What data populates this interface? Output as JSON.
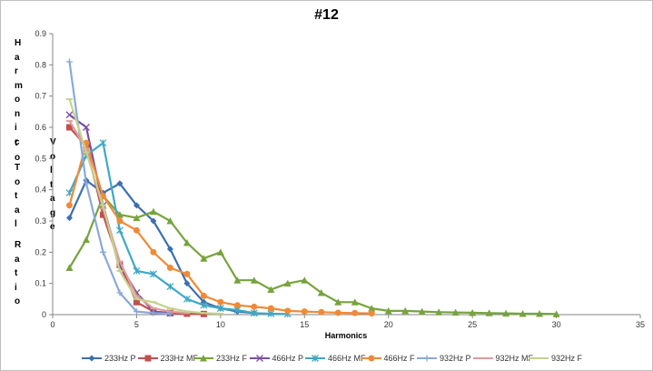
{
  "chart_data": {
    "type": "line",
    "title": "#12",
    "xlabel": "Harmonics",
    "ylabel": "Harmonic to Total Voltage Ratio",
    "xlim": [
      0,
      35
    ],
    "ylim": [
      0,
      0.9
    ],
    "xticks": [
      0,
      5,
      10,
      15,
      20,
      25,
      30,
      35
    ],
    "yticks": [
      0,
      0.1,
      0.2,
      0.3,
      0.4,
      0.5,
      0.6,
      0.7,
      0.8,
      0.9
    ],
    "grid": false,
    "legend_position": "bottom",
    "series": [
      {
        "name": "233Hz P",
        "color": "#3c6fae",
        "marker": "diamond",
        "x": [
          1,
          2,
          3,
          4,
          5,
          6,
          7,
          8,
          9,
          10,
          11,
          12
        ],
        "y": [
          0.31,
          0.43,
          0.39,
          0.42,
          0.35,
          0.3,
          0.21,
          0.1,
          0.04,
          0.02,
          0.01,
          0.005
        ]
      },
      {
        "name": "233Hz MF",
        "color": "#c0504d",
        "marker": "square",
        "x": [
          1,
          2,
          3,
          4,
          5,
          6,
          7,
          8,
          9
        ],
        "y": [
          0.6,
          0.54,
          0.32,
          0.16,
          0.04,
          0.01,
          0.005,
          0.003,
          0.002
        ]
      },
      {
        "name": "233Hz F",
        "color": "#77a33e",
        "marker": "triangle",
        "x": [
          1,
          2,
          3,
          4,
          5,
          6,
          7,
          8,
          9,
          10,
          11,
          12,
          13,
          14,
          15,
          16,
          17,
          18,
          19,
          20,
          21,
          22,
          23,
          24,
          25,
          26,
          27,
          28,
          29,
          30
        ],
        "y": [
          0.15,
          0.24,
          0.38,
          0.32,
          0.31,
          0.33,
          0.3,
          0.23,
          0.18,
          0.2,
          0.11,
          0.11,
          0.08,
          0.1,
          0.11,
          0.07,
          0.04,
          0.04,
          0.02,
          0.012,
          0.012,
          0.01,
          0.008,
          0.007,
          0.006,
          0.005,
          0.004,
          0.003,
          0.003,
          0.002
        ]
      },
      {
        "name": "466Hz P",
        "color": "#7a4f9e",
        "marker": "x",
        "x": [
          1,
          2,
          3,
          4,
          5,
          6,
          7
        ],
        "y": [
          0.64,
          0.6,
          0.35,
          0.16,
          0.07,
          0.01,
          0.005
        ]
      },
      {
        "name": "466Hz MF",
        "color": "#3ea8c4",
        "marker": "star",
        "x": [
          1,
          2,
          3,
          4,
          5,
          6,
          7,
          8,
          9,
          10,
          11,
          12,
          13,
          14
        ],
        "y": [
          0.39,
          0.51,
          0.55,
          0.27,
          0.14,
          0.13,
          0.09,
          0.05,
          0.03,
          0.02,
          0.015,
          0.005,
          0.003,
          0.002
        ]
      },
      {
        "name": "466Hz F",
        "color": "#f08a36",
        "marker": "circle",
        "x": [
          1,
          2,
          3,
          4,
          5,
          6,
          7,
          8,
          9,
          10,
          11,
          12,
          13,
          14,
          15,
          16,
          17,
          18,
          19
        ],
        "y": [
          0.35,
          0.55,
          0.38,
          0.3,
          0.27,
          0.2,
          0.15,
          0.13,
          0.06,
          0.04,
          0.03,
          0.025,
          0.02,
          0.012,
          0.01,
          0.008,
          0.006,
          0.005,
          0.004
        ]
      },
      {
        "name": "932Hz P",
        "color": "#8aa8d8",
        "marker": "plus",
        "x": [
          1,
          2,
          3,
          4,
          5,
          6,
          7
        ],
        "y": [
          0.81,
          0.42,
          0.2,
          0.07,
          0.01,
          0.005,
          0.003
        ]
      },
      {
        "name": "932Hz MF",
        "color": "#e39a9a",
        "marker": "dash",
        "x": [
          1,
          2,
          3,
          4,
          5,
          6,
          7,
          8
        ],
        "y": [
          0.62,
          0.53,
          0.34,
          0.17,
          0.06,
          0.02,
          0.01,
          0.005
        ]
      },
      {
        "name": "932Hz F",
        "color": "#c4d28a",
        "marker": "dash",
        "x": [
          1,
          2,
          3,
          4,
          5,
          6,
          7,
          8,
          9,
          10
        ],
        "y": [
          0.69,
          0.52,
          0.35,
          0.14,
          0.05,
          0.04,
          0.02,
          0.01,
          0.005,
          0.003
        ]
      }
    ]
  }
}
